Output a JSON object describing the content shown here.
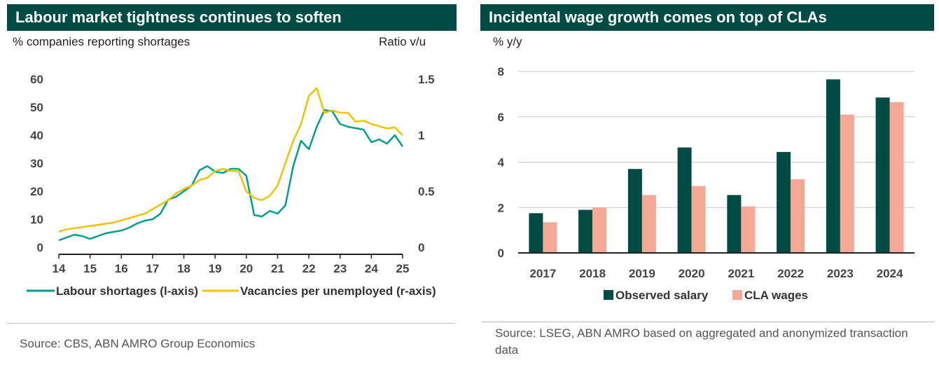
{
  "chart_data": [
    {
      "type": "line",
      "title": "Labour market tightness continues to soften",
      "ylabel_left": "% companies reporting shortages",
      "ylabel_right": "Ratio v/u",
      "xlim": [
        14,
        25
      ],
      "ylim_left": [
        0,
        60
      ],
      "ylim_right": [
        0,
        1.5
      ],
      "x_ticks": [
        "14",
        "15",
        "16",
        "17",
        "18",
        "19",
        "20",
        "21",
        "22",
        "23",
        "24",
        "25"
      ],
      "y_ticks_left": [
        "0",
        "10",
        "20",
        "30",
        "40",
        "50",
        "60"
      ],
      "y_ticks_right": [
        "0",
        "0.5",
        "1",
        "1.5"
      ],
      "series": [
        {
          "name": "Labour shortages (l-axis)",
          "axis": "left",
          "color": "#009e8e",
          "x": [
            14,
            14.25,
            14.5,
            14.75,
            15,
            15.25,
            15.5,
            15.75,
            16,
            16.25,
            16.5,
            16.75,
            17,
            17.25,
            17.5,
            17.75,
            18,
            18.25,
            18.5,
            18.75,
            19,
            19.25,
            19.5,
            19.75,
            20,
            20.25,
            20.5,
            20.75,
            21,
            21.25,
            21.5,
            21.75,
            22,
            22.25,
            22.5,
            22.75,
            23,
            23.25,
            23.5,
            23.75,
            24,
            24.25,
            24.5,
            24.75,
            25
          ],
          "y": [
            2.5,
            3.5,
            4.5,
            4,
            3,
            4,
            5,
            5.5,
            6,
            7,
            8.5,
            9.5,
            10,
            12,
            17,
            18,
            20,
            22,
            27.5,
            29,
            27,
            26.5,
            28,
            28,
            25.5,
            11.5,
            11,
            13,
            12,
            15,
            29,
            38,
            35,
            43,
            49,
            48.5,
            44,
            43,
            42.5,
            42,
            37.5,
            38.5,
            37,
            40,
            36
          ]
        },
        {
          "name": "Vacancies per unemployed (r-axis)",
          "axis": "right",
          "color": "#f2c200",
          "x": [
            14,
            14.25,
            14.5,
            14.75,
            15,
            15.25,
            15.5,
            15.75,
            16,
            16.25,
            16.5,
            16.75,
            17,
            17.25,
            17.5,
            17.75,
            18,
            18.25,
            18.5,
            18.75,
            19,
            19.25,
            19.5,
            19.75,
            20,
            20.25,
            20.5,
            20.75,
            21,
            21.25,
            21.5,
            21.75,
            22,
            22.25,
            22.5,
            22.75,
            23,
            23.25,
            23.5,
            23.75,
            24,
            24.25,
            24.5,
            24.75,
            25
          ],
          "y": [
            0.14,
            0.16,
            0.17,
            0.18,
            0.19,
            0.2,
            0.21,
            0.22,
            0.24,
            0.26,
            0.28,
            0.3,
            0.34,
            0.38,
            0.42,
            0.48,
            0.52,
            0.55,
            0.6,
            0.62,
            0.68,
            0.7,
            0.68,
            0.68,
            0.5,
            0.44,
            0.42,
            0.46,
            0.55,
            0.75,
            0.95,
            1.1,
            1.35,
            1.42,
            1.2,
            1.22,
            1.2,
            1.2,
            1.12,
            1.13,
            1.1,
            1.08,
            1.06,
            1.07,
            1.0
          ]
        }
      ],
      "legend": [
        "Labour shortages (l-axis)",
        "Vacancies per unemployed (r-axis)"
      ],
      "source": "Source: CBS, ABN AMRO Group Economics"
    },
    {
      "type": "bar",
      "title": "Incidental wage growth comes on top of CLAs",
      "ylabel": "% y/y",
      "ylim": [
        0,
        8
      ],
      "y_ticks": [
        "0",
        "2",
        "4",
        "6",
        "8"
      ],
      "categories": [
        "2017",
        "2018",
        "2019",
        "2020",
        "2021",
        "2022",
        "2023",
        "2024"
      ],
      "series": [
        {
          "name": "Observed salary",
          "color": "#004c45",
          "values": [
            1.75,
            1.9,
            3.7,
            4.65,
            2.55,
            4.45,
            7.65,
            6.85
          ]
        },
        {
          "name": "CLA wages",
          "color": "#f4a995",
          "values": [
            1.35,
            2.0,
            2.55,
            2.95,
            2.05,
            3.25,
            6.1,
            6.65
          ]
        }
      ],
      "legend": [
        "Observed salary",
        "CLA wages"
      ],
      "source": "Source: LSEG,  ABN AMRO based on aggregated and anonymized transaction data"
    }
  ]
}
